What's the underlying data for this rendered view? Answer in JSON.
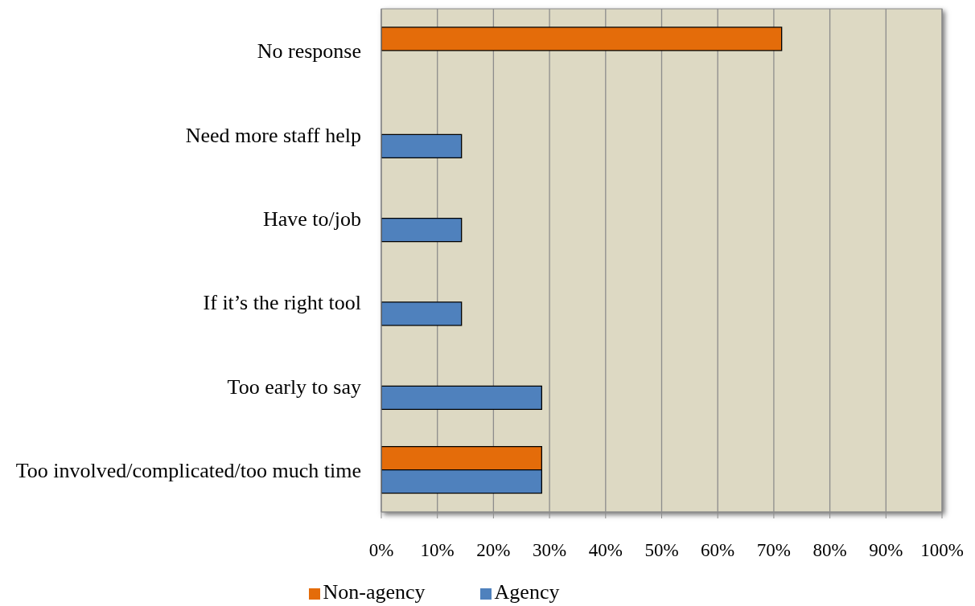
{
  "chart_data": {
    "type": "bar",
    "orientation": "horizontal",
    "categories": [
      "No response",
      "Need more staff help",
      "Have to/job",
      "If it’s the right tool",
      "Too early to say",
      "Too involved/complicated/too much time"
    ],
    "series": [
      {
        "name": "Non-agency",
        "color": "#e46c0a",
        "values": [
          71.4,
          null,
          null,
          null,
          null,
          28.6
        ]
      },
      {
        "name": "Agency",
        "color": "#4f81bd",
        "values": [
          null,
          14.3,
          14.3,
          14.3,
          28.6,
          28.6
        ]
      }
    ],
    "xlim": [
      0,
      100
    ],
    "xticks": [
      {
        "value": 0,
        "label": "0%"
      },
      {
        "value": 10,
        "label": "10%"
      },
      {
        "value": 20,
        "label": "20%"
      },
      {
        "value": 30,
        "label": "30%"
      },
      {
        "value": 40,
        "label": "40%"
      },
      {
        "value": 50,
        "label": "50%"
      },
      {
        "value": 60,
        "label": "60%"
      },
      {
        "value": 70,
        "label": "70%"
      },
      {
        "value": 80,
        "label": "80%"
      },
      {
        "value": 90,
        "label": "90%"
      },
      {
        "value": 100,
        "label": "100%"
      }
    ],
    "grid": "x",
    "legend": "bottom"
  }
}
